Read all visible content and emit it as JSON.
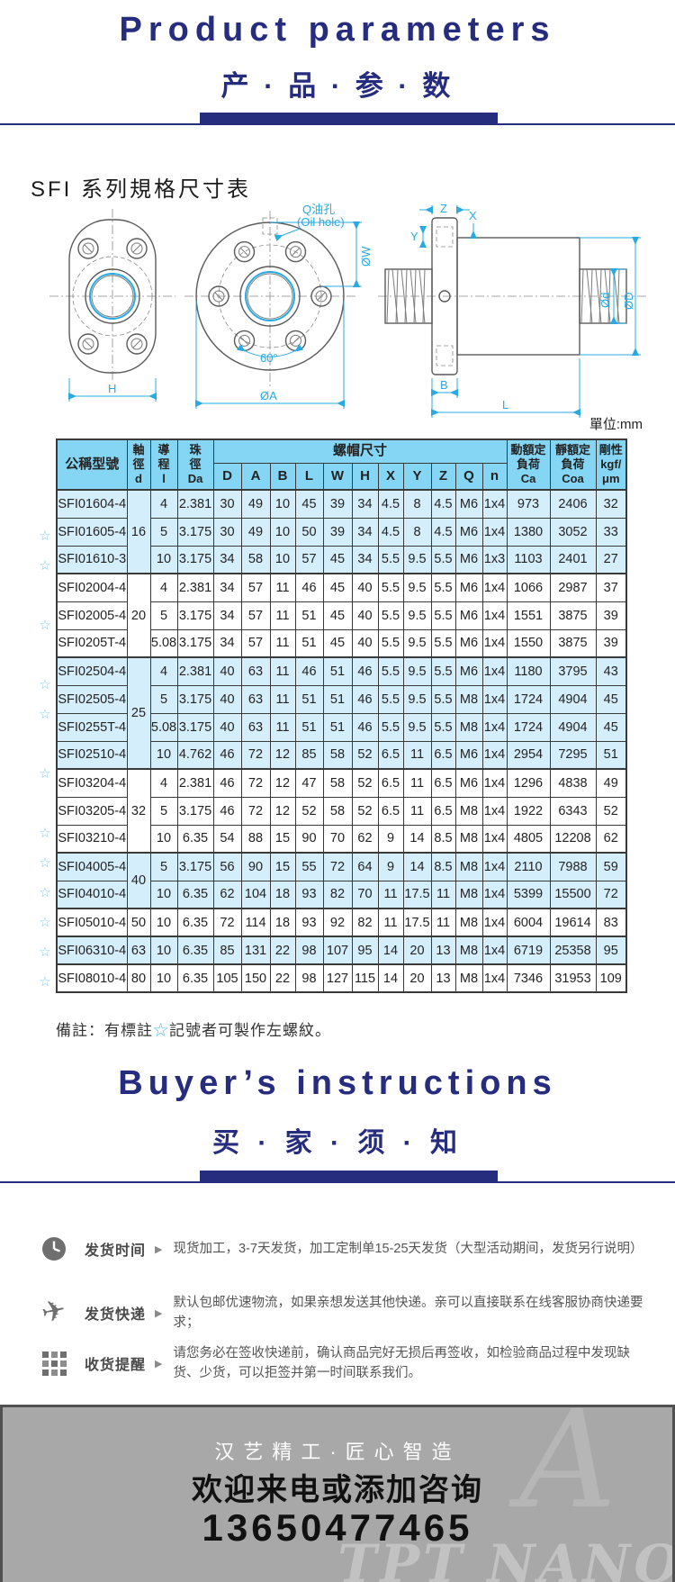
{
  "header": {
    "title_en": "Product parameters",
    "title_cn": "产 · 品 · 参 · 数"
  },
  "section": {
    "title": "SFI 系列規格尺寸表",
    "unit": "單位:mm"
  },
  "diagrams": {
    "oil_cn": "Q油孔",
    "oil_en": "(Oil hole)",
    "h": "H",
    "deg60": "60°",
    "oa": "ØA",
    "ow": "ØW",
    "z": "Z",
    "y": "Y",
    "x": "X",
    "od": "Ød",
    "oD": "ØD",
    "b": "B",
    "l": "L"
  },
  "table": {
    "star_char": "☆",
    "col_model": "公稱型號",
    "col_d": "軸\n徑\nd",
    "col_lead": "導\n程\nl",
    "col_da": "珠\n徑\nDa",
    "col_nut": "螺帽尺寸",
    "nut_cols": [
      "D",
      "A",
      "B",
      "L",
      "W",
      "H",
      "X",
      "Y",
      "Z",
      "Q",
      "n"
    ],
    "col_ca": "動額定\n負荷\nCa",
    "col_coa": "靜額定\n負荷\nCoa",
    "col_stiff": "剛性\nkgf/\nμm",
    "groups": [
      {
        "d": "16",
        "shaded": true,
        "rows": [
          {
            "star": false,
            "model": "SFI01604-4",
            "values": [
              "4",
              "2.381",
              "30",
              "49",
              "10",
              "45",
              "39",
              "34",
              "4.5",
              "8",
              "4.5",
              "M6",
              "1x4",
              "973",
              "2406",
              "32"
            ]
          },
          {
            "star": true,
            "model": "SFI01605-4",
            "values": [
              "5",
              "3.175",
              "30",
              "49",
              "10",
              "50",
              "39",
              "34",
              "4.5",
              "8",
              "4.5",
              "M6",
              "1x4",
              "1380",
              "3052",
              "33"
            ]
          },
          {
            "star": true,
            "model": "SFI01610-3",
            "values": [
              "10",
              "3.175",
              "34",
              "58",
              "10",
              "57",
              "45",
              "34",
              "5.5",
              "9.5",
              "5.5",
              "M6",
              "1x3",
              "1103",
              "2401",
              "27"
            ]
          }
        ]
      },
      {
        "d": "20",
        "shaded": false,
        "rows": [
          {
            "star": false,
            "model": "SFI02004-4",
            "values": [
              "4",
              "2.381",
              "34",
              "57",
              "11",
              "46",
              "45",
              "40",
              "5.5",
              "9.5",
              "5.5",
              "M6",
              "1x4",
              "1066",
              "2987",
              "37"
            ]
          },
          {
            "star": true,
            "model": "SFI02005-4",
            "values": [
              "5",
              "3.175",
              "34",
              "57",
              "11",
              "51",
              "45",
              "40",
              "5.5",
              "9.5",
              "5.5",
              "M6",
              "1x4",
              "1551",
              "3875",
              "39"
            ]
          },
          {
            "star": false,
            "model": "SFI0205T-4",
            "values": [
              "5.08",
              "3.175",
              "34",
              "57",
              "11",
              "51",
              "45",
              "40",
              "5.5",
              "9.5",
              "5.5",
              "M6",
              "1x4",
              "1550",
              "3875",
              "39"
            ]
          }
        ]
      },
      {
        "d": "25",
        "shaded": true,
        "rows": [
          {
            "star": true,
            "model": "SFI02504-4",
            "values": [
              "4",
              "2.381",
              "40",
              "63",
              "11",
              "46",
              "51",
              "46",
              "5.5",
              "9.5",
              "5.5",
              "M6",
              "1x4",
              "1180",
              "3795",
              "43"
            ]
          },
          {
            "star": true,
            "model": "SFI02505-4",
            "values": [
              "5",
              "3.175",
              "40",
              "63",
              "11",
              "51",
              "51",
              "46",
              "5.5",
              "9.5",
              "5.5",
              "M8",
              "1x4",
              "1724",
              "4904",
              "45"
            ]
          },
          {
            "star": false,
            "model": "SFI0255T-4",
            "values": [
              "5.08",
              "3.175",
              "40",
              "63",
              "11",
              "51",
              "51",
              "46",
              "5.5",
              "9.5",
              "5.5",
              "M8",
              "1x4",
              "1724",
              "4904",
              "45"
            ]
          },
          {
            "star": true,
            "model": "SFI02510-4",
            "values": [
              "10",
              "4.762",
              "46",
              "72",
              "12",
              "85",
              "58",
              "52",
              "6.5",
              "11",
              "6.5",
              "M6",
              "1x4",
              "2954",
              "7295",
              "51"
            ]
          }
        ]
      },
      {
        "d": "32",
        "shaded": false,
        "rows": [
          {
            "star": false,
            "model": "SFI03204-4",
            "values": [
              "4",
              "2.381",
              "46",
              "72",
              "12",
              "47",
              "58",
              "52",
              "6.5",
              "11",
              "6.5",
              "M6",
              "1x4",
              "1296",
              "4838",
              "49"
            ]
          },
          {
            "star": true,
            "model": "SFI03205-4",
            "values": [
              "5",
              "3.175",
              "46",
              "72",
              "12",
              "52",
              "58",
              "52",
              "6.5",
              "11",
              "6.5",
              "M8",
              "1x4",
              "1922",
              "6343",
              "52"
            ]
          },
          {
            "star": true,
            "model": "SFI03210-4",
            "values": [
              "10",
              "6.35",
              "54",
              "88",
              "15",
              "90",
              "70",
              "62",
              "9",
              "14",
              "8.5",
              "M8",
              "1x4",
              "4805",
              "12208",
              "62"
            ]
          }
        ]
      },
      {
        "d": "40",
        "shaded": true,
        "rows": [
          {
            "star": true,
            "model": "SFI04005-4",
            "values": [
              "5",
              "3.175",
              "56",
              "90",
              "15",
              "55",
              "72",
              "64",
              "9",
              "14",
              "8.5",
              "M8",
              "1x4",
              "2110",
              "7988",
              "59"
            ]
          },
          {
            "star": true,
            "model": "SFI04010-4",
            "values": [
              "10",
              "6.35",
              "62",
              "104",
              "18",
              "93",
              "82",
              "70",
              "11",
              "17.5",
              "11",
              "M8",
              "1x4",
              "5399",
              "15500",
              "72"
            ]
          }
        ]
      },
      {
        "d": "50",
        "shaded": false,
        "rows": [
          {
            "star": true,
            "model": "SFI05010-4",
            "values": [
              "10",
              "6.35",
              "72",
              "114",
              "18",
              "93",
              "92",
              "82",
              "11",
              "17.5",
              "11",
              "M8",
              "1x4",
              "6004",
              "19614",
              "83"
            ]
          }
        ]
      },
      {
        "d": "63",
        "shaded": true,
        "rows": [
          {
            "star": true,
            "model": "SFI06310-4",
            "values": [
              "10",
              "6.35",
              "85",
              "131",
              "22",
              "98",
              "107",
              "95",
              "14",
              "20",
              "13",
              "M8",
              "1x4",
              "6719",
              "25358",
              "95"
            ]
          }
        ]
      },
      {
        "d": "80",
        "shaded": false,
        "rows": [
          {
            "star": false,
            "model": "SFI08010-4",
            "values": [
              "10",
              "6.35",
              "105",
              "150",
              "22",
              "98",
              "127",
              "115",
              "14",
              "20",
              "13",
              "M8",
              "1x4",
              "7346",
              "31953",
              "109"
            ]
          }
        ]
      }
    ]
  },
  "note": {
    "prefix": "備註：有標註",
    "star": "☆",
    "suffix": "記號者可製作左螺紋。"
  },
  "buyers": {
    "title_en": "Buyer’s instructions",
    "title_cn": "买 · 家 · 须 · 知",
    "arrow": "▶",
    "items": [
      {
        "icon": "clock-icon",
        "label": "发货时间",
        "text": "现货加工，3-7天发货，加工定制单15-25天发货（大型活动期间，发货另行说明）"
      },
      {
        "icon": "airplane-icon",
        "label": "发货快递",
        "text": "默认包邮优速物流，如果亲想发送其他快递。亲可以直接联系在线客服协商快递要求；"
      },
      {
        "icon": "grid-icon",
        "label": "收货提醒",
        "text": "请您务必在签收快递前，确认商品完好无损后再签收，如检验商品过程中发现缺货、少货，可以拒签并第一时间联系我们。"
      }
    ]
  },
  "footer": {
    "line1": "汉艺精工·匠心智造",
    "line2": "欢迎来电或添加咨询",
    "phone": "13650477465",
    "watermark": "TPT NANO"
  }
}
